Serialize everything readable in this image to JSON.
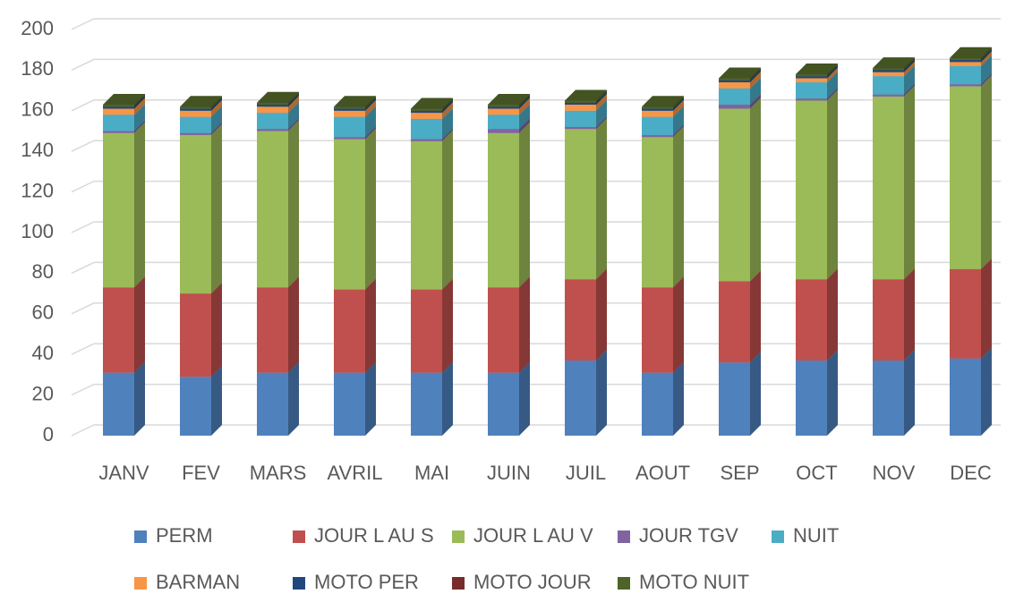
{
  "chart_data": {
    "type": "bar3d_stacked",
    "categories": [
      "JANV",
      "FEV",
      "MARS",
      "AVRIL",
      "MAI",
      "JUIN",
      "JUIL",
      "AOUT",
      "SEP",
      "OCT",
      "NOV",
      "DEC"
    ],
    "series": [
      {
        "name": "PERM",
        "color": "#4f81bd",
        "values": [
          31,
          29,
          31,
          31,
          31,
          31,
          37,
          31,
          36,
          37,
          37,
          38
        ]
      },
      {
        "name": "JOUR L AU S",
        "color": "#c0504d",
        "values": [
          42,
          41,
          42,
          41,
          41,
          42,
          40,
          42,
          40,
          40,
          40,
          44
        ]
      },
      {
        "name": "JOUR L AU V",
        "color": "#9bbb59",
        "values": [
          76,
          78,
          77,
          74,
          73,
          76,
          74,
          74,
          85,
          88,
          90,
          90
        ]
      },
      {
        "name": "JOUR TGV",
        "color": "#8064a2",
        "values": [
          1,
          1,
          1,
          1,
          1,
          2,
          1,
          1,
          2,
          1,
          1,
          1
        ]
      },
      {
        "name": "NUIT",
        "color": "#4bacc6",
        "values": [
          8,
          8,
          8,
          10,
          10,
          7,
          8,
          9,
          8,
          8,
          9,
          9
        ]
      },
      {
        "name": "BARMAN",
        "color": "#f79646",
        "values": [
          3,
          3,
          3,
          3,
          3,
          3,
          3,
          3,
          3,
          2,
          2,
          2
        ]
      },
      {
        "name": "MOTO PER",
        "color": "#1f497d",
        "values": [
          1,
          1,
          1,
          1,
          1,
          1,
          1,
          1,
          1,
          1,
          1,
          1
        ]
      },
      {
        "name": "MOTO JOUR",
        "color": "#772c2a",
        "values": [
          0,
          0,
          0,
          0,
          0,
          0,
          0,
          0,
          0,
          0,
          0,
          0
        ]
      },
      {
        "name": "MOTO NUIT",
        "color": "#4f6228",
        "values": [
          1,
          1,
          1,
          1,
          1,
          1,
          1,
          1,
          1,
          1,
          1,
          1
        ]
      }
    ],
    "ylim": [
      0,
      200
    ],
    "yticks": [
      0,
      20,
      40,
      60,
      80,
      100,
      120,
      140,
      160,
      180,
      200
    ],
    "grid": true,
    "legend": "bottom"
  }
}
